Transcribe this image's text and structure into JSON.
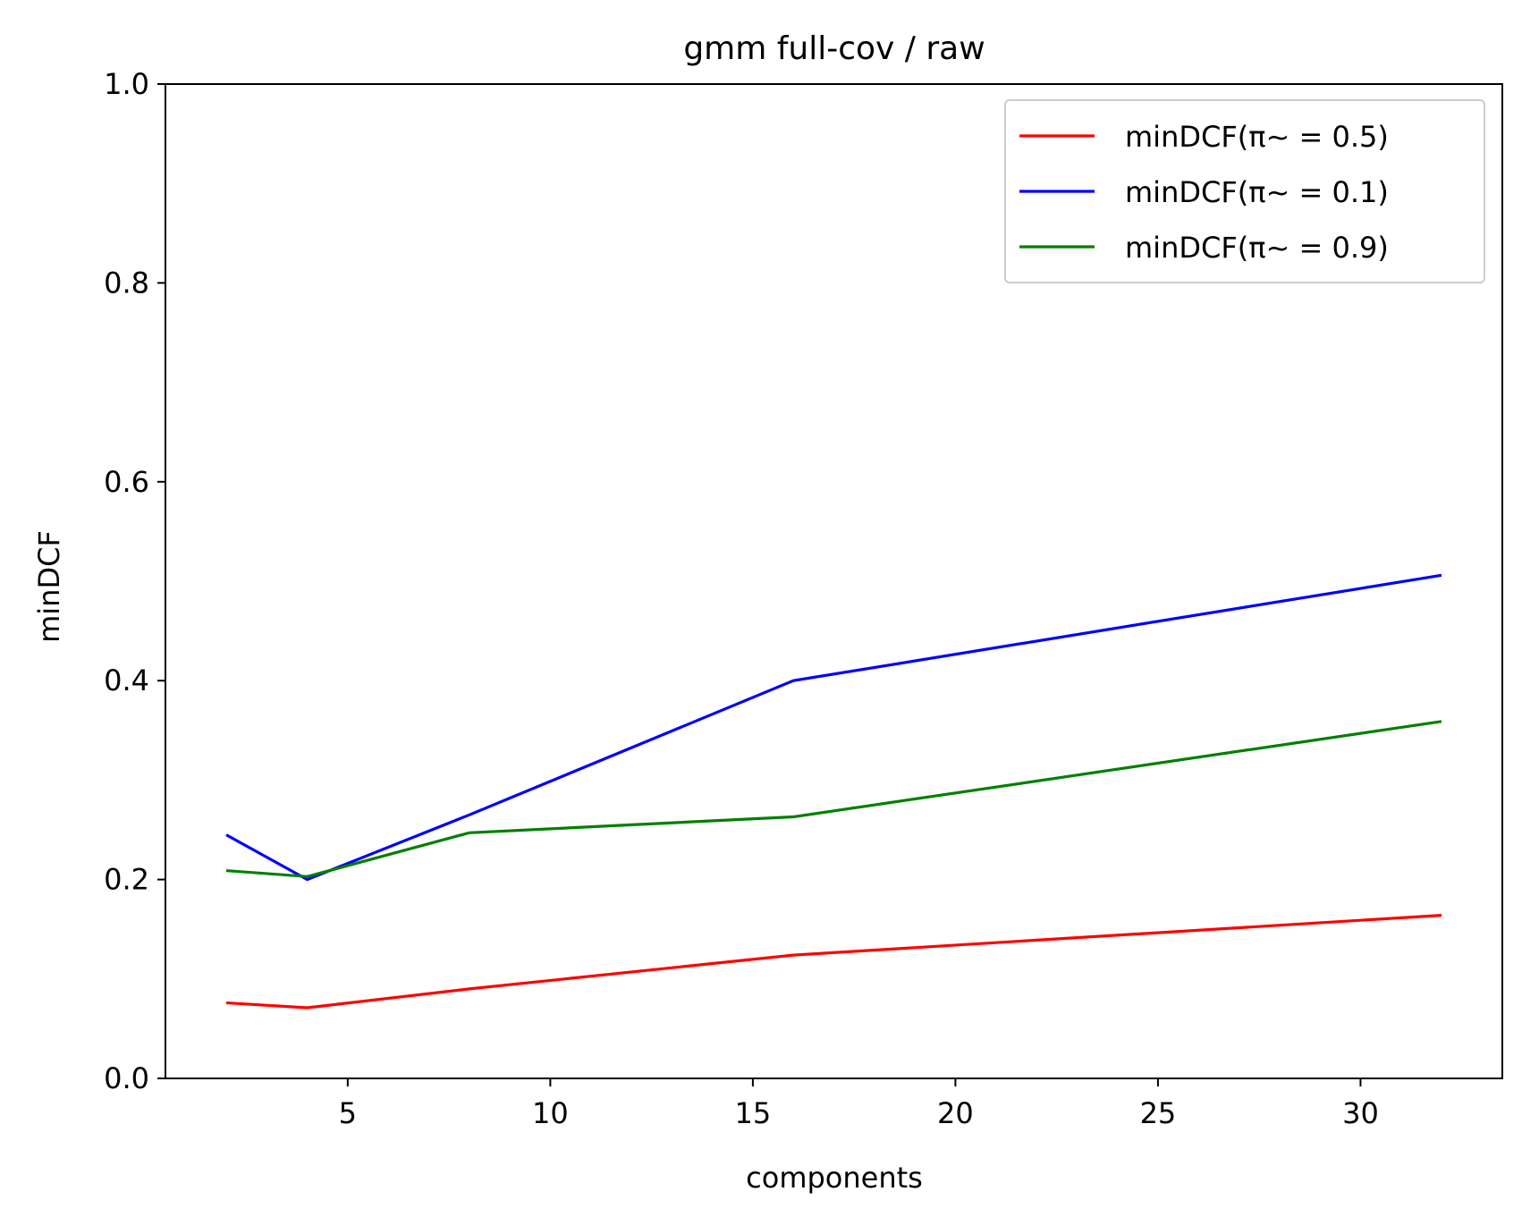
{
  "chart_data": {
    "type": "line",
    "title": "gmm full-cov / raw",
    "xlabel": "components",
    "ylabel": "minDCF",
    "x": [
      2,
      4,
      8,
      16,
      32
    ],
    "xlim": [
      0.5,
      33.5
    ],
    "ylim": [
      0.0,
      1.0
    ],
    "xticks": [
      5,
      10,
      15,
      20,
      25,
      30
    ],
    "yticks": [
      "0.0",
      "0.2",
      "0.4",
      "0.6",
      "0.8",
      "1.0"
    ],
    "grid": false,
    "legend_position": "top-right",
    "series": [
      {
        "name": "minDCF(π~ = 0.5)",
        "color": "#ff0000",
        "values": [
          0.076,
          0.071,
          0.09,
          0.124,
          0.164
        ]
      },
      {
        "name": "minDCF(π~ = 0.1)",
        "color": "#0000ff",
        "values": [
          0.245,
          0.2,
          0.265,
          0.4,
          0.506
        ]
      },
      {
        "name": "minDCF(π~ = 0.9)",
        "color": "#008000",
        "values": [
          0.209,
          0.203,
          0.247,
          0.263,
          0.359
        ]
      }
    ]
  }
}
